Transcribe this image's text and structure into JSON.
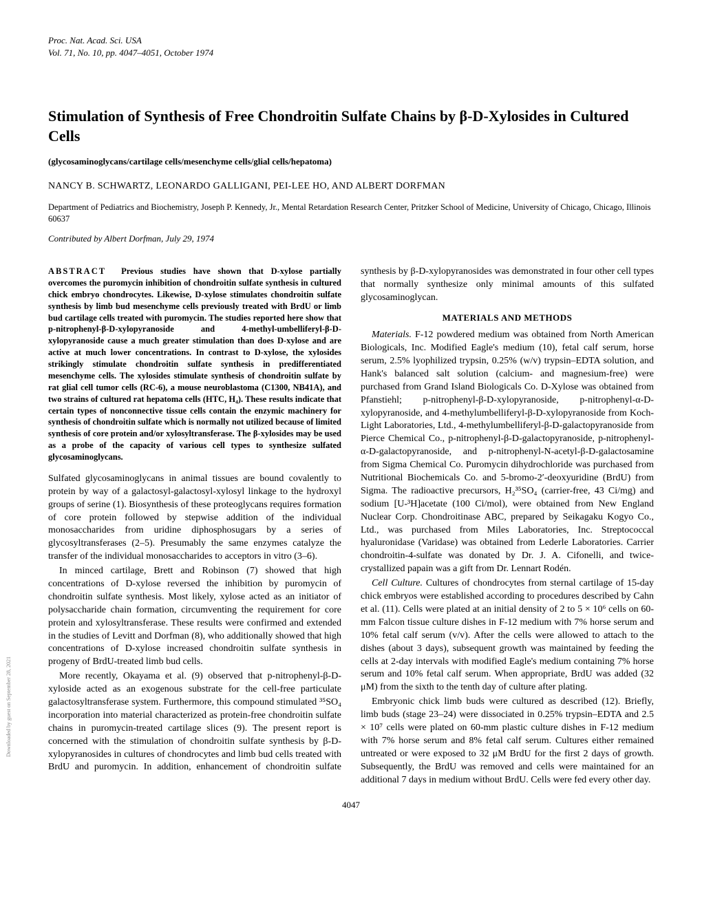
{
  "journal": {
    "name": "Proc. Nat. Acad. Sci. USA",
    "citation": "Vol. 71, No. 10, pp. 4047–4051, October 1974"
  },
  "title": "Stimulation of Synthesis of Free Chondroitin Sulfate Chains by β-D-Xylosides in Cultured Cells",
  "keywords": "(glycosaminoglycans/cartilage cells/mesenchyme cells/glial cells/hepatoma)",
  "authors": "NANCY B. SCHWARTZ, LEONARDO GALLIGANI, PEI-LEE HO, AND ALBERT DORFMAN",
  "affiliation": "Department of Pediatrics and Biochemistry, Joseph P. Kennedy, Jr., Mental Retardation Research Center, Pritzker School of Medicine, University of Chicago, Chicago, Illinois 60637",
  "contributed": "Contributed by Albert Dorfman, July 29, 1974",
  "abstract_label": "ABSTRACT",
  "abstract": "Previous studies have shown that D-xylose partially overcomes the puromycin inhibition of chondroitin sulfate synthesis in cultured chick embryo chondrocytes. Likewise, D-xylose stimulates chondroitin sulfate synthesis by limb bud mesenchyme cells previously treated with BrdU or limb bud cartilage cells treated with puromycin. The studies reported here show that p-nitrophenyl-β-D-xylopyranoside and 4-methyl-umbelliferyl-β-D-xylopyranoside cause a much greater stimulation than does D-xylose and are active at much lower concentrations. In contrast to D-xylose, the xylosides strikingly stimulate chondroitin sulfate synthesis in predifferentiated mesenchyme cells. The xylosides stimulate synthesis of chondroitin sulfate by rat glial cell tumor cells (RC-6), a mouse neuroblastoma (C1300, NB41A), and two strains of cultured rat hepatoma cells (HTC, H₄). These results indicate that certain types of nonconnective tissue cells contain the enzymic machinery for synthesis of chondroitin sulfate which is normally not utilized because of limited synthesis of core protein and/or xylosyltransferase. The β-xylosides may be used as a probe of the capacity of various cell types to synthesize sulfated glycosaminoglycans.",
  "body": {
    "p1": "Sulfated glycosaminoglycans in animal tissues are bound covalently to protein by way of a galactosyl-galactosyl-xylosyl linkage to the hydroxyl groups of serine (1). Biosynthesis of these proteoglycans requires formation of core protein followed by stepwise addition of the individual monosaccharides from uridine diphosphosugars by a series of glycosyltransferases (2–5). Presumably the same enzymes catalyze the transfer of the individual monosaccharides to acceptors in vitro (3–6).",
    "p2": "In minced cartilage, Brett and Robinson (7) showed that high concentrations of D-xylose reversed the inhibition by puromycin of chondroitin sulfate synthesis. Most likely, xylose acted as an initiator of polysaccharide chain formation, circumventing the requirement for core protein and xylosyltransferase. These results were confirmed and extended in the studies of Levitt and Dorfman (8), who additionally showed that high concentrations of D-xylose increased chondroitin sulfate synthesis in progeny of BrdU-treated limb bud cells.",
    "p3": "More recently, Okayama et al. (9) observed that p-nitrophenyl-β-D-xyloside acted as an exogenous substrate for the cell-free particulate galactosyltransferase system. Furthermore, this compound stimulated ³⁵SO₄ incorporation into material characterized as protein-free chondroitin sulfate chains in puromycin-treated cartilage slices (9). The present report is concerned with the stimulation of chondroitin sulfate synthesis by β-D-xylopyranosides in cultures of chondrocytes and limb bud cells treated with BrdU and puromycin. In addition, enhancement of chondroitin sulfate synthesis by β-D-xylopyranosides was demonstrated in four other cell types that normally synthesize only minimal amounts of this sulfated glycosaminoglycan.",
    "mm_head": "MATERIALS AND METHODS",
    "mm_sub1": "Materials.",
    "mm1": " F-12 powdered medium was obtained from North American Biologicals, Inc. Modified Eagle's medium (10), fetal calf serum, horse serum, 2.5% lyophilized trypsin, 0.25% (w/v) trypsin–EDTA solution, and Hank's balanced salt solution (calcium- and magnesium-free) were purchased from Grand Island Biologicals Co. D-Xylose was obtained from Pfanstiehl; p-nitrophenyl-β-D-xylopyranoside, p-nitrophenyl-α-D-xylopyranoside, and 4-methylumbelliferyl-β-D-xylopyranoside from Koch-Light Laboratories, Ltd., 4-methylumbelliferyl-β-D-galactopyranoside from Pierce Chemical Co., p-nitrophenyl-β-D-galactopyranoside, p-nitrophenyl-α-D-galactopyranoside, and p-nitrophenyl-N-acetyl-β-D-galactosamine from Sigma Chemical Co. Puromycin dihydrochloride was purchased from Nutritional Biochemicals Co. and 5-bromo-2′-deoxyuridine (BrdU) from Sigma. The radioactive precursors, H₂³⁵SO₄ (carrier-free, 43 Ci/mg) and sodium [U-³H]acetate (100 Ci/mol), were obtained from New England Nuclear Corp. Chondroitinase ABC, prepared by Seikagaku Kogyo Co., Ltd., was purchased from Miles Laboratories, Inc. Streptococcal hyaluronidase (Varidase) was obtained from Lederle Laboratories. Carrier chondroitin-4-sulfate was donated by Dr. J. A. Cifonelli, and twice-crystallized papain was a gift from Dr. Lennart Rodén.",
    "mm_sub2": "Cell Culture.",
    "mm2": " Cultures of chondrocytes from sternal cartilage of 15-day chick embryos were established according to procedures described by Cahn et al. (11). Cells were plated at an initial density of 2 to 5 × 10⁶ cells on 60-mm Falcon tissue culture dishes in F-12 medium with 7% horse serum and 10% fetal calf serum (v/v). After the cells were allowed to attach to the dishes (about 3 days), subsequent growth was maintained by feeding the cells at 2-day intervals with modified Eagle's medium containing 7% horse serum and 10% fetal calf serum. When appropriate, BrdU was added (32 μM) from the sixth to the tenth day of culture after plating.",
    "mm3": "Embryonic chick limb buds were cultured as described (12). Briefly, limb buds (stage 23–24) were dissociated in 0.25% trypsin–EDTA and 2.5 × 10⁷ cells were plated on 60-mm plastic culture dishes in F-12 medium with 7% horse serum and 8% fetal calf serum. Cultures either remained untreated or were exposed to 32 μM BrdU for the first 2 days of growth. Subsequently, the BrdU was removed and cells were maintained for an additional 7 days in medium without BrdU. Cells were fed every other day."
  },
  "pagenum": "4047",
  "sidetext": "Downloaded by guest on September 28, 2021"
}
